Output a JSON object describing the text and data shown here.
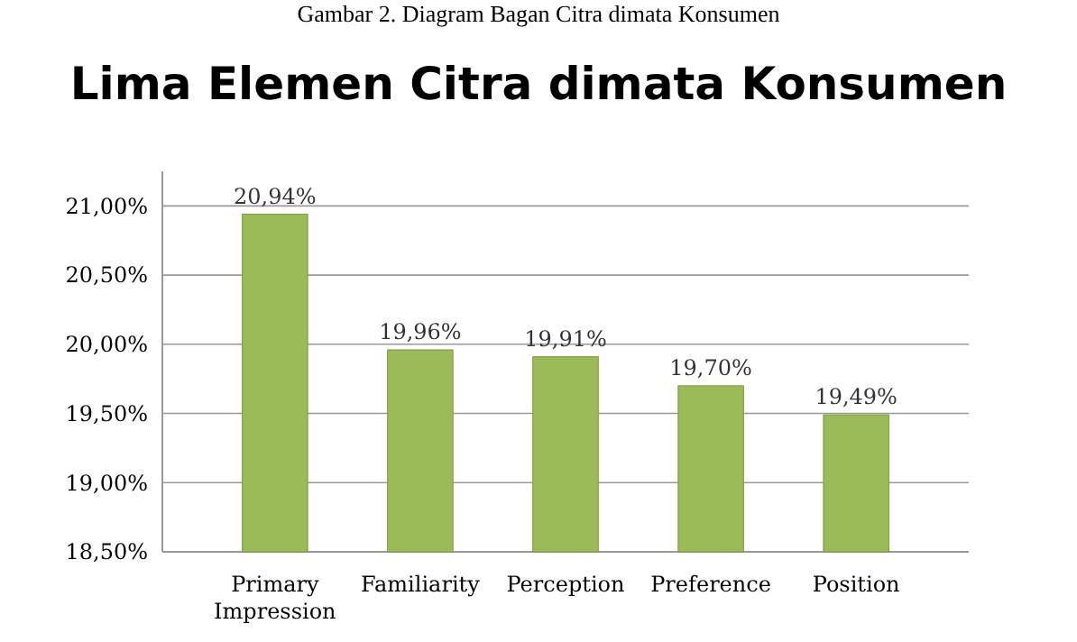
{
  "chart_data": {
    "type": "bar",
    "title": "Lima Elemen Citra dimata Konsumen",
    "annotations": [
      "Gambar 2. Diagram Bagan Citra dimata Konsumen"
    ],
    "categories": [
      "Primary Impression",
      "Familiarity",
      "Perception",
      "Preference",
      "Position"
    ],
    "values": [
      20.94,
      19.96,
      19.91,
      19.7,
      19.49
    ],
    "value_labels": [
      "20,94%",
      "19,96%",
      "19,91%",
      "19,70%",
      "19,49%"
    ],
    "color": "#9bbb59",
    "ylim": [
      18.5,
      21.25
    ],
    "yticks": [
      {
        "value": 18.5,
        "label": "18,50%"
      },
      {
        "value": 19,
        "label": "19,00%"
      },
      {
        "value": 19.5,
        "label": "19,50%"
      },
      {
        "value": 20,
        "label": "20,00%"
      },
      {
        "value": 20.5,
        "label": "20,50%"
      },
      {
        "value": 21,
        "label": "21,00%"
      }
    ],
    "grid": "y"
  }
}
